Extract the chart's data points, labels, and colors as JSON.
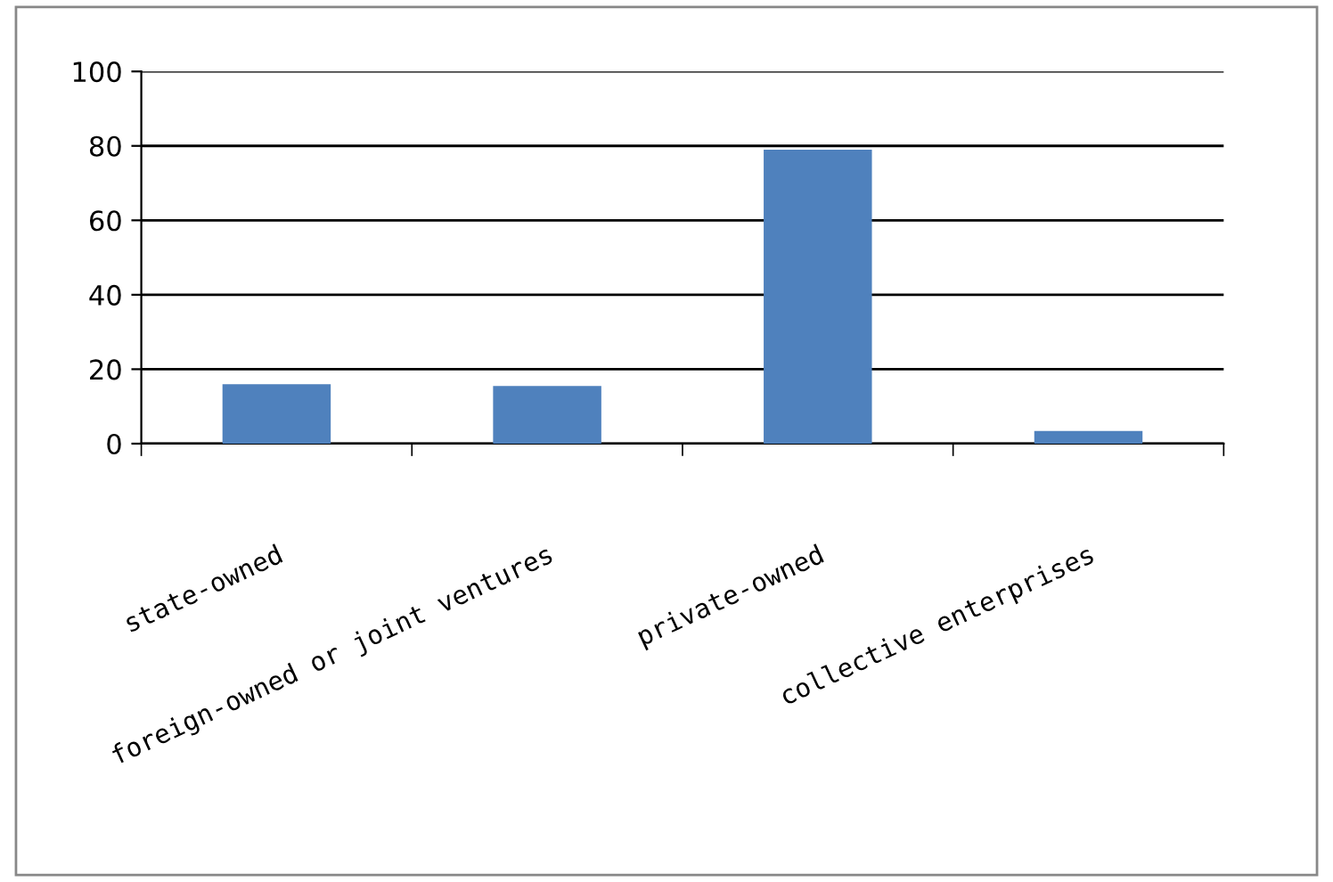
{
  "chart_data": {
    "type": "bar",
    "categories": [
      "state-owned",
      "foreign-owned or joint ventures",
      "private-owned",
      "collective enterprises"
    ],
    "values": [
      16,
      15.5,
      79,
      3.4
    ],
    "color": "#4f81bd",
    "ylim": [
      0,
      100
    ],
    "yticks": [
      0,
      20,
      40,
      60,
      80,
      100
    ],
    "grid": "y"
  }
}
